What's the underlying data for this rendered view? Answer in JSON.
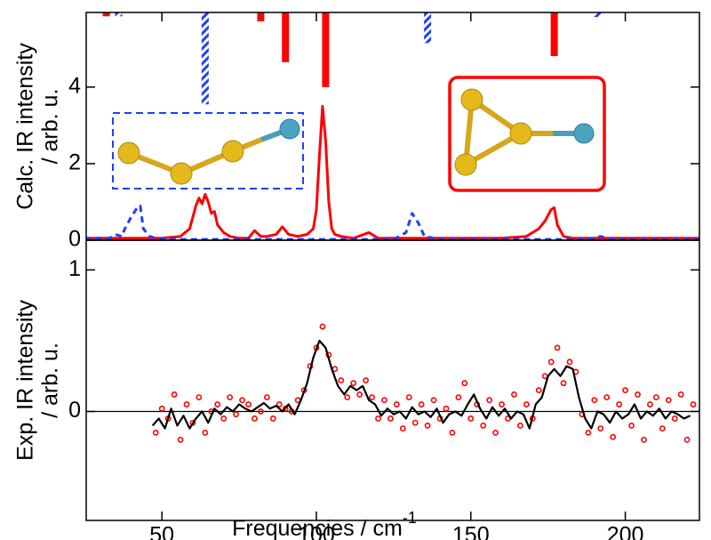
{
  "chart_data": [
    {
      "type": "line",
      "ylabel": [
        "Calc. IR intensity",
        "/ arb. u."
      ],
      "xlim": [
        25.5,
        224
      ],
      "ylim": [
        0,
        5.95
      ],
      "yticks": [
        0,
        2,
        4
      ],
      "sticks": [
        {
          "color": "#ff0000",
          "style": "solid",
          "x": [
            32,
            82,
            90,
            103,
            177
          ],
          "values": [
            0.1,
            0.23,
            1.3,
            1.95,
            1.14
          ]
        },
        {
          "color": "#1f3fff",
          "style": "hatched",
          "x": [
            36,
            64,
            136,
            191
          ],
          "values": [
            0.1,
            2.4,
            0.8,
            0.12
          ]
        }
      ],
      "series": [
        {
          "color": "#ff0000",
          "dash": false,
          "x": [
            25,
            40,
            50,
            56,
            59,
            61,
            62,
            63,
            64,
            65,
            66,
            67,
            68,
            70,
            72,
            75,
            78,
            80,
            82,
            84,
            87,
            89,
            91,
            94,
            97,
            99,
            100,
            101,
            102,
            103,
            104,
            105,
            106,
            108,
            112,
            117,
            120,
            130,
            140,
            160,
            168,
            172,
            174,
            176,
            177,
            178,
            180,
            183,
            190,
            200,
            215,
            224
          ],
          "values": [
            0.05,
            0.05,
            0.05,
            0.1,
            0.3,
            0.9,
            1.1,
            0.95,
            1.2,
            1.0,
            0.7,
            0.75,
            0.4,
            0.2,
            0.1,
            0.05,
            0.05,
            0.25,
            0.1,
            0.1,
            0.15,
            0.35,
            0.15,
            0.1,
            0.15,
            0.3,
            0.8,
            2.2,
            3.5,
            2.6,
            1.0,
            0.3,
            0.15,
            0.1,
            0.05,
            0.2,
            0.05,
            0.05,
            0.05,
            0.05,
            0.1,
            0.3,
            0.5,
            0.8,
            0.85,
            0.4,
            0.1,
            0.05,
            0.05,
            0.05,
            0.05,
            0.05
          ]
        },
        {
          "color": "#1f3fff",
          "dash": true,
          "x": [
            25,
            33,
            35,
            37,
            38,
            40,
            42,
            43,
            44,
            46,
            48,
            55,
            125,
            129,
            131,
            133,
            135,
            140,
            185,
            190,
            192,
            194,
            200,
            224
          ],
          "values": [
            0.05,
            0.05,
            0.15,
            0.1,
            0.3,
            0.6,
            0.85,
            0.9,
            0.3,
            0.1,
            0.05,
            0.02,
            0.02,
            0.2,
            0.7,
            0.45,
            0.1,
            0.02,
            0.02,
            0.05,
            0.1,
            0.05,
            0.02,
            0.02
          ]
        }
      ]
    },
    {
      "type": "line",
      "ylabel": [
        "Exp. IR intensity",
        "/ arb. u."
      ],
      "xlabel": {
        "text": "Frequencies / cm",
        "sup": "-1"
      },
      "xlim": [
        25.5,
        224
      ],
      "ylim": [
        -0.77,
        1.21
      ],
      "xticks": [
        50,
        100,
        150,
        200
      ],
      "yticks": [
        0,
        1
      ],
      "zero_line": true,
      "series": [
        {
          "color": "#ff0000",
          "mode": "markers",
          "x": [
            48,
            50,
            52,
            54,
            56,
            58,
            60,
            62,
            64,
            66,
            68,
            70,
            72,
            74,
            76,
            78,
            80,
            82,
            84,
            86,
            88,
            90,
            92,
            94,
            96,
            98,
            100,
            102,
            104,
            106,
            108,
            110,
            112,
            114,
            116,
            118,
            120,
            122,
            124,
            126,
            128,
            130,
            132,
            134,
            136,
            138,
            140,
            142,
            144,
            146,
            148,
            150,
            152,
            154,
            156,
            158,
            160,
            162,
            164,
            166,
            168,
            170,
            172,
            174,
            176,
            178,
            180,
            182,
            184,
            186,
            188,
            190,
            192,
            194,
            196,
            198,
            200,
            202,
            204,
            206,
            208,
            210,
            212,
            214,
            216,
            218,
            220,
            222
          ],
          "values": [
            -0.15,
            0.02,
            -0.05,
            0.12,
            -0.2,
            0.05,
            -0.08,
            0.1,
            -0.15,
            0.0,
            0.05,
            -0.05,
            0.1,
            -0.02,
            0.08,
            0.05,
            -0.05,
            0.0,
            0.1,
            -0.05,
            0.05,
            0.02,
            0.0,
            0.08,
            0.15,
            0.32,
            0.45,
            0.6,
            0.4,
            0.3,
            0.22,
            0.1,
            0.2,
            0.12,
            0.22,
            0.1,
            -0.05,
            0.08,
            -0.05,
            0.05,
            -0.12,
            0.1,
            -0.08,
            0.05,
            -0.1,
            0.08,
            -0.05,
            0.02,
            -0.15,
            0.1,
            0.2,
            -0.05,
            0.05,
            -0.1,
            0.08,
            -0.15,
            0.05,
            -0.05,
            0.12,
            -0.1,
            0.05,
            -0.05,
            0.15,
            0.25,
            0.35,
            0.45,
            0.2,
            0.35,
            0.28,
            -0.02,
            -0.15,
            0.08,
            -0.12,
            0.1,
            -0.18,
            0.05,
            0.15,
            -0.1,
            0.12,
            -0.2,
            0.05,
            0.1,
            -0.12,
            0.08,
            -0.05,
            0.12,
            -0.2,
            0.05
          ]
        },
        {
          "color": "#000000",
          "mode": "line",
          "x": [
            47,
            49,
            51,
            53,
            55,
            57,
            59,
            61,
            63,
            65,
            67,
            69,
            71,
            73,
            75,
            77,
            79,
            81,
            83,
            85,
            87,
            89,
            91,
            93,
            95,
            97,
            99,
            101,
            103,
            105,
            107,
            109,
            111,
            113,
            115,
            117,
            119,
            121,
            123,
            125,
            127,
            129,
            131,
            133,
            135,
            137,
            139,
            141,
            143,
            145,
            147,
            149,
            151,
            153,
            155,
            157,
            159,
            161,
            163,
            165,
            167,
            169,
            171,
            173,
            175,
            177,
            179,
            181,
            183,
            185,
            187,
            189,
            191,
            193,
            195,
            197,
            199,
            201,
            203,
            205,
            207,
            209,
            211,
            213,
            215,
            217,
            219,
            221
          ],
          "values": [
            -0.1,
            -0.05,
            -0.12,
            0.02,
            -0.1,
            -0.03,
            -0.12,
            -0.05,
            0.0,
            -0.08,
            0.02,
            -0.02,
            0.03,
            0.0,
            0.05,
            0.02,
            0.0,
            0.03,
            0.06,
            0.02,
            0.04,
            0.0,
            0.05,
            -0.02,
            0.08,
            0.2,
            0.38,
            0.5,
            0.45,
            0.3,
            0.18,
            0.12,
            0.18,
            0.15,
            0.18,
            0.08,
            0.05,
            -0.03,
            0.02,
            -0.02,
            0.0,
            -0.05,
            0.03,
            -0.02,
            0.0,
            -0.04,
            0.02,
            -0.08,
            -0.02,
            0.0,
            -0.03,
            0.05,
            0.12,
            0.02,
            -0.05,
            0.03,
            -0.03,
            0.02,
            -0.05,
            0.0,
            -0.02,
            -0.12,
            0.05,
            0.1,
            0.25,
            0.3,
            0.25,
            0.32,
            0.3,
            0.1,
            -0.05,
            -0.12,
            0.0,
            -0.02,
            -0.08,
            0.0,
            -0.05,
            -0.02,
            0.05,
            -0.05,
            0.0,
            -0.03,
            0.02,
            -0.05,
            0.0,
            -0.02,
            -0.05,
            -0.03
          ]
        }
      ]
    }
  ]
}
